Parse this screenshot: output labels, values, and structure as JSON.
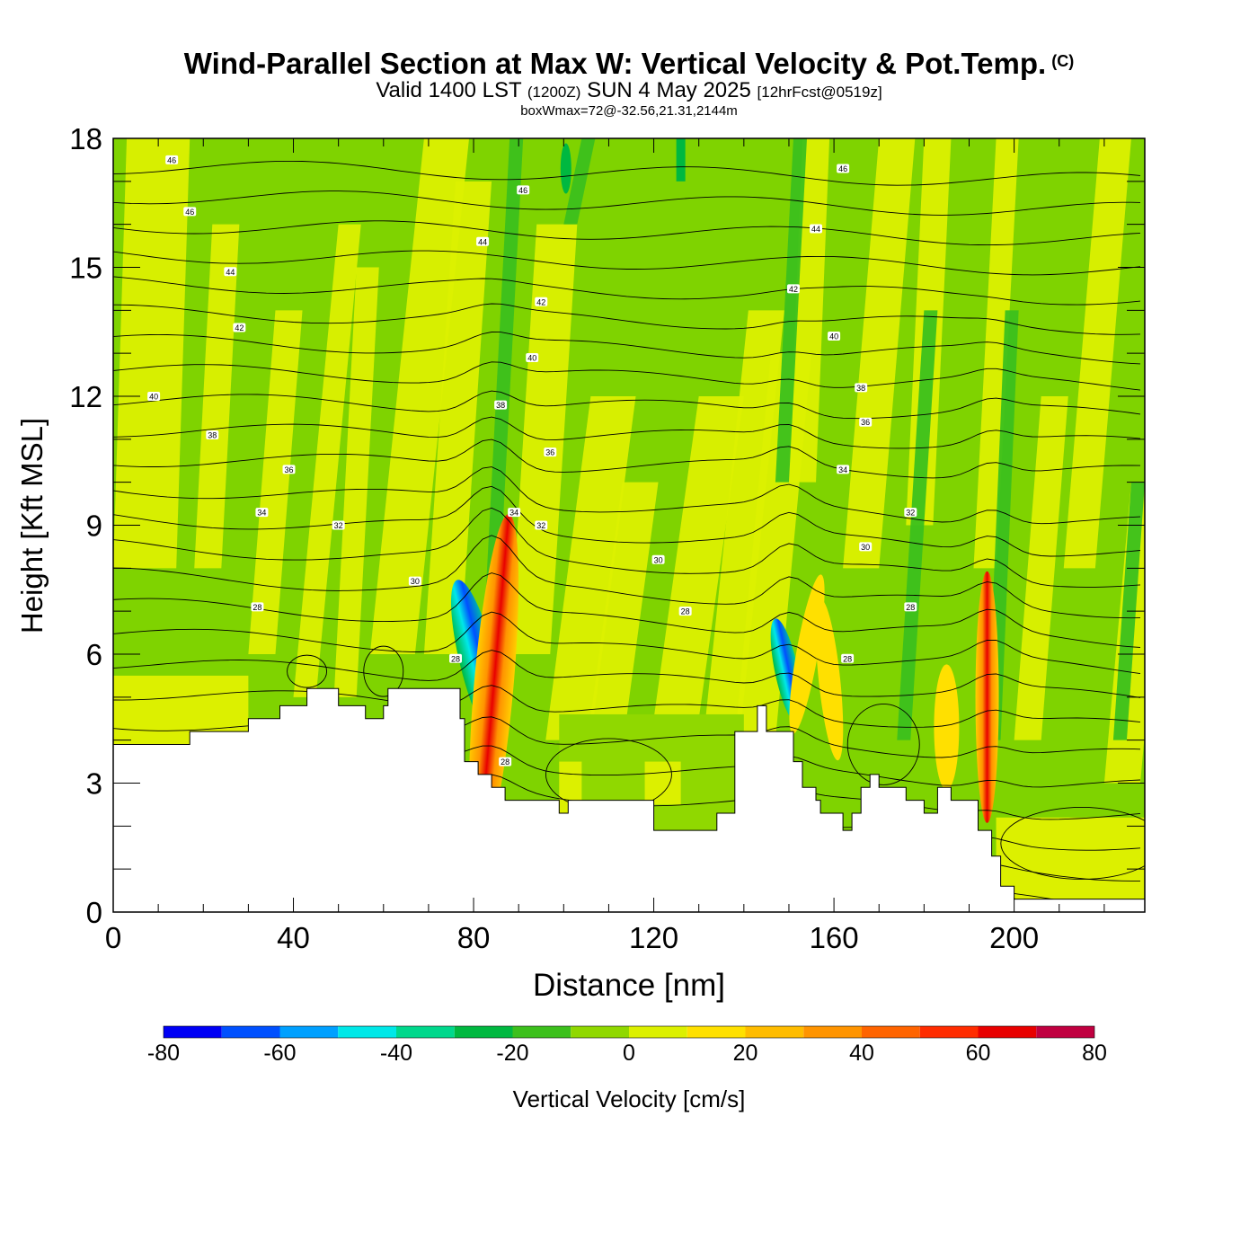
{
  "header": {
    "title": "Wind-Parallel Section at Max W: Vertical Velocity & Pot.Temp.",
    "copyright": "(C)",
    "valid_main": "Valid 1400 LST",
    "valid_utc": "(1200Z)",
    "valid_date": "SUN 4 May 2025",
    "forecast": "[12hrFcst@0519z]",
    "box_wmax": "boxWmax=72@-32.56,21.31,2144m"
  },
  "colors": {
    "background_field": "#7fd300",
    "colorbar": [
      "#0000f5",
      "#0050ff",
      "#00a0ff",
      "#00e8e8",
      "#00d88c",
      "#00b840",
      "#3cc01c",
      "#90d800",
      "#dcf000",
      "#ffe000",
      "#ffbc00",
      "#ff9400",
      "#ff6400",
      "#ff2c00",
      "#e80000",
      "#c00040"
    ]
  },
  "chart_data": {
    "type": "heatmap",
    "title": "Wind-Parallel Section at Max W: Vertical Velocity & Pot.Temp.",
    "xlabel": "Distance [nm]",
    "ylabel": "Height [Kft MSL]",
    "xlim": [
      0,
      229
    ],
    "ylim": [
      0,
      18
    ],
    "x_ticks": [
      0,
      40,
      80,
      120,
      160,
      200
    ],
    "y_ticks": [
      0,
      3,
      6,
      9,
      12,
      15,
      18
    ],
    "colorbar": {
      "label": "Vertical Velocity [cm/s]",
      "range": [
        -80,
        80
      ],
      "step": 10,
      "tick_labels": [
        "-80",
        "-60",
        "-40",
        "-20",
        "0",
        "20",
        "40",
        "60",
        "80"
      ]
    },
    "terrain_profile": {
      "x": [
        0,
        17,
        17,
        30,
        30,
        37,
        37,
        43,
        43,
        50,
        50,
        56,
        56,
        60,
        60,
        61,
        61,
        66,
        66,
        77,
        77,
        78,
        78,
        81,
        81,
        84,
        84,
        87,
        87,
        99,
        99,
        101,
        101,
        120,
        120,
        134,
        134,
        138,
        138,
        143,
        143,
        145,
        145,
        151,
        151,
        153,
        153,
        156,
        156,
        157,
        157,
        162,
        162,
        164,
        164,
        166,
        166,
        168,
        168,
        170,
        170,
        176,
        176,
        180,
        180,
        183,
        183,
        186,
        186,
        192,
        192,
        195,
        195,
        197,
        197,
        200,
        200,
        210,
        210,
        229
      ],
      "y": [
        3.9,
        3.9,
        4.2,
        4.2,
        4.5,
        4.5,
        4.8,
        4.8,
        5.2,
        5.2,
        4.8,
        4.8,
        4.5,
        4.5,
        4.8,
        4.8,
        5.2,
        5.2,
        5.2,
        5.2,
        4.5,
        4.5,
        3.5,
        3.5,
        3.2,
        3.2,
        2.9,
        2.9,
        2.6,
        2.6,
        2.3,
        2.3,
        2.6,
        2.6,
        1.9,
        1.9,
        2.3,
        2.3,
        4.2,
        4.2,
        4.8,
        4.8,
        4.2,
        4.2,
        3.5,
        3.5,
        2.9,
        2.9,
        2.6,
        2.6,
        2.3,
        2.3,
        1.9,
        1.9,
        2.3,
        2.3,
        2.9,
        2.9,
        3.2,
        3.2,
        2.9,
        2.9,
        2.6,
        2.6,
        2.3,
        2.3,
        2.9,
        2.9,
        2.6,
        2.6,
        1.9,
        1.9,
        1.3,
        1.3,
        0.6,
        0.6,
        0.3,
        0.3,
        0.3,
        0.3
      ]
    },
    "contour_labels": [
      {
        "text": "46",
        "x": 13,
        "y": 17.5
      },
      {
        "text": "46",
        "x": 17,
        "y": 16.3
      },
      {
        "text": "44",
        "x": 26,
        "y": 14.9
      },
      {
        "text": "42",
        "x": 28,
        "y": 13.6
      },
      {
        "text": "40",
        "x": 9,
        "y": 12.0
      },
      {
        "text": "38",
        "x": 22,
        "y": 11.1
      },
      {
        "text": "36",
        "x": 39,
        "y": 10.3
      },
      {
        "text": "34",
        "x": 33,
        "y": 9.3
      },
      {
        "text": "32",
        "x": 50,
        "y": 9.0
      },
      {
        "text": "30",
        "x": 67,
        "y": 7.7
      },
      {
        "text": "28",
        "x": 32,
        "y": 7.1
      },
      {
        "text": "46",
        "x": 91,
        "y": 16.8
      },
      {
        "text": "44",
        "x": 82,
        "y": 15.6
      },
      {
        "text": "42",
        "x": 95,
        "y": 14.2
      },
      {
        "text": "40",
        "x": 93,
        "y": 12.9
      },
      {
        "text": "38",
        "x": 86,
        "y": 11.8
      },
      {
        "text": "36",
        "x": 97,
        "y": 10.7
      },
      {
        "text": "34",
        "x": 89,
        "y": 9.3
      },
      {
        "text": "32",
        "x": 95,
        "y": 9.0
      },
      {
        "text": "30",
        "x": 121,
        "y": 8.2
      },
      {
        "text": "28",
        "x": 127,
        "y": 7.0
      },
      {
        "text": "28",
        "x": 76,
        "y": 5.9
      },
      {
        "text": "28",
        "x": 87,
        "y": 3.5
      },
      {
        "text": "46",
        "x": 162,
        "y": 17.3
      },
      {
        "text": "44",
        "x": 156,
        "y": 15.9
      },
      {
        "text": "42",
        "x": 151,
        "y": 14.5
      },
      {
        "text": "40",
        "x": 160,
        "y": 13.4
      },
      {
        "text": "38",
        "x": 166,
        "y": 12.2
      },
      {
        "text": "36",
        "x": 167,
        "y": 11.4
      },
      {
        "text": "34",
        "x": 162,
        "y": 10.3
      },
      {
        "text": "32",
        "x": 177,
        "y": 9.3
      },
      {
        "text": "30",
        "x": 167,
        "y": 8.5
      },
      {
        "text": "28",
        "x": 177,
        "y": 7.1
      },
      {
        "text": "28",
        "x": 163,
        "y": 5.9
      }
    ]
  }
}
